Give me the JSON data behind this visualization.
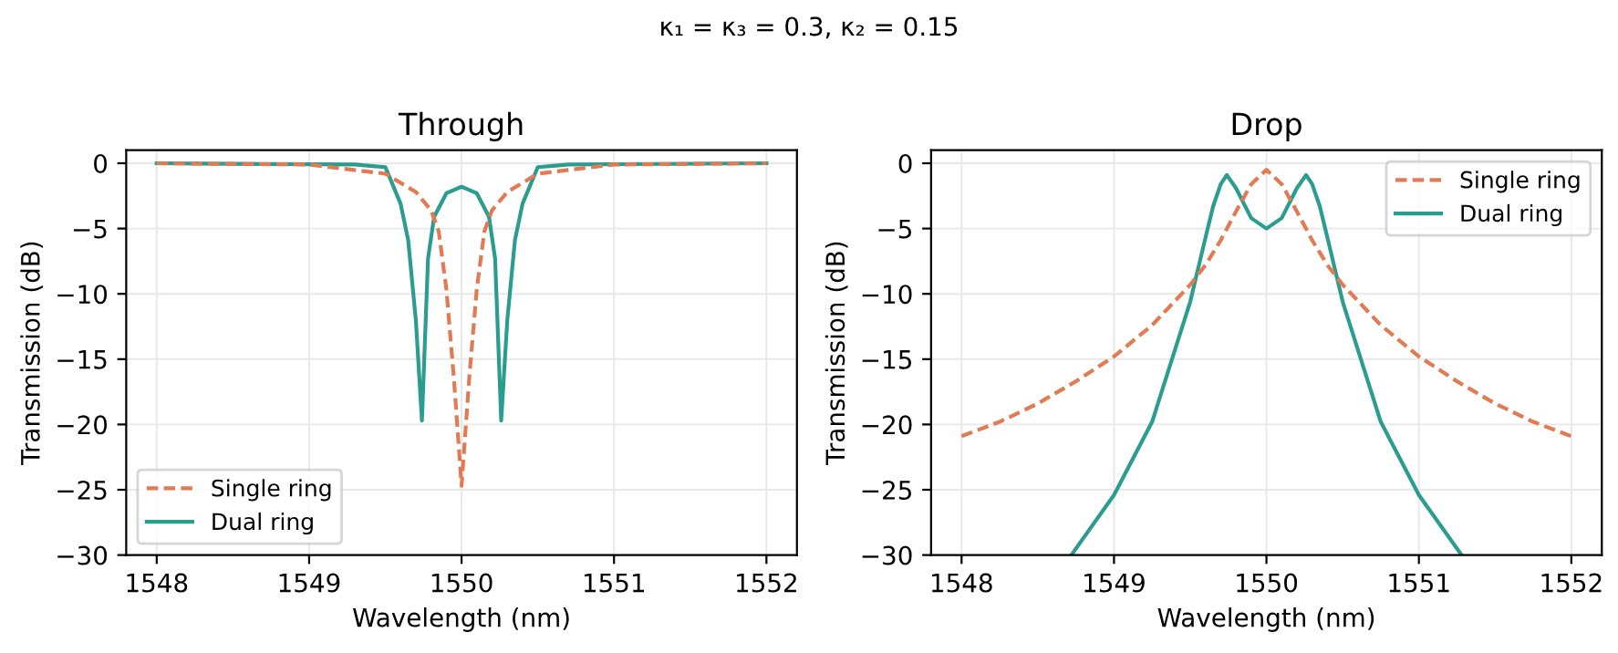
{
  "chart_data": [
    {
      "type": "line",
      "title": "Through",
      "xlabel": "Wavelength (nm)",
      "ylabel": "Transmission (dB)",
      "annotations": [
        "κ₁ = κ₃ = 0.3, κ₂ = 0.15"
      ],
      "xlim": [
        1547.8,
        1552.2
      ],
      "ylim": [
        -30,
        1
      ],
      "xticks": [
        1548,
        1549,
        1550,
        1551,
        1552
      ],
      "yticks": [
        -30,
        -25,
        -20,
        -15,
        -10,
        -5,
        0
      ],
      "grid": true,
      "legend": "bottom left",
      "series": [
        {
          "name": "Single ring",
          "color": "#e07b54",
          "line_style": "dashed",
          "x": [
            1548,
            1549,
            1549.5,
            1549.7,
            1549.8,
            1549.85,
            1549.9,
            1549.95,
            1550,
            1550.05,
            1550.1,
            1550.15,
            1550.2,
            1550.3,
            1550.5,
            1551,
            1552
          ],
          "values": [
            0,
            -0.1,
            -0.8,
            -2.2,
            -3.6,
            -5.2,
            -9.6,
            -16.5,
            -24.7,
            -16.5,
            -9.6,
            -5.2,
            -3.6,
            -2.2,
            -0.8,
            -0.1,
            0
          ]
        },
        {
          "name": "Dual ring",
          "color": "#2a9d8f",
          "line_style": "solid",
          "x": [
            1548,
            1549.3,
            1549.4,
            1549.5,
            1549.6,
            1549.65,
            1549.7,
            1549.74,
            1549.78,
            1549.82,
            1549.9,
            1550,
            1550.1,
            1550.18,
            1550.22,
            1550.26,
            1550.3,
            1550.35,
            1550.4,
            1550.5,
            1550.6,
            1550.7,
            1552
          ],
          "values": [
            0,
            -0.1,
            -0.2,
            -0.3,
            -3.1,
            -5.9,
            -12,
            -19.7,
            -7.3,
            -4.1,
            -2.3,
            -1.8,
            -2.3,
            -4.1,
            -7.3,
            -19.7,
            -12,
            -5.9,
            -3.1,
            -0.3,
            -0.2,
            -0.1,
            0
          ]
        }
      ]
    },
    {
      "type": "line",
      "title": "Drop",
      "xlabel": "Wavelength (nm)",
      "ylabel": "Transmission (dB)",
      "xlim": [
        1547.8,
        1552.2
      ],
      "ylim": [
        -30,
        1
      ],
      "xticks": [
        1548,
        1549,
        1550,
        1551,
        1552
      ],
      "yticks": [
        -30,
        -25,
        -20,
        -15,
        -10,
        -5,
        0
      ],
      "grid": true,
      "legend": "top right",
      "series": [
        {
          "name": "Single ring",
          "color": "#e07b54",
          "line_style": "dashed",
          "x": [
            1548,
            1548.25,
            1548.5,
            1548.75,
            1549,
            1549.25,
            1549.5,
            1549.6,
            1549.7,
            1549.8,
            1549.9,
            1550,
            1550.1,
            1550.2,
            1550.3,
            1550.4,
            1550.5,
            1550.75,
            1551,
            1551.25,
            1551.5,
            1551.75,
            1552
          ],
          "values": [
            -20.9,
            -19.8,
            -18.4,
            -16.7,
            -14.8,
            -12.4,
            -9.3,
            -7.8,
            -5.9,
            -3.7,
            -1.6,
            -0.5,
            -1.6,
            -3.7,
            -5.9,
            -7.8,
            -9.3,
            -12.4,
            -14.8,
            -16.7,
            -18.4,
            -19.8,
            -20.9
          ]
        },
        {
          "name": "Dual ring",
          "color": "#2a9d8f",
          "line_style": "solid",
          "x": [
            1548.72,
            1549,
            1549.25,
            1549.5,
            1549.6,
            1549.65,
            1549.7,
            1549.74,
            1549.8,
            1549.9,
            1550,
            1550.1,
            1550.2,
            1550.26,
            1550.3,
            1550.35,
            1550.4,
            1550.5,
            1550.75,
            1551,
            1551.28
          ],
          "values": [
            -30,
            -25.4,
            -19.8,
            -10.6,
            -5.7,
            -3.3,
            -1.6,
            -0.9,
            -1.9,
            -4.2,
            -5.0,
            -4.2,
            -1.9,
            -0.9,
            -1.6,
            -3.3,
            -5.7,
            -10.6,
            -19.8,
            -25.4,
            -30
          ]
        }
      ]
    }
  ]
}
